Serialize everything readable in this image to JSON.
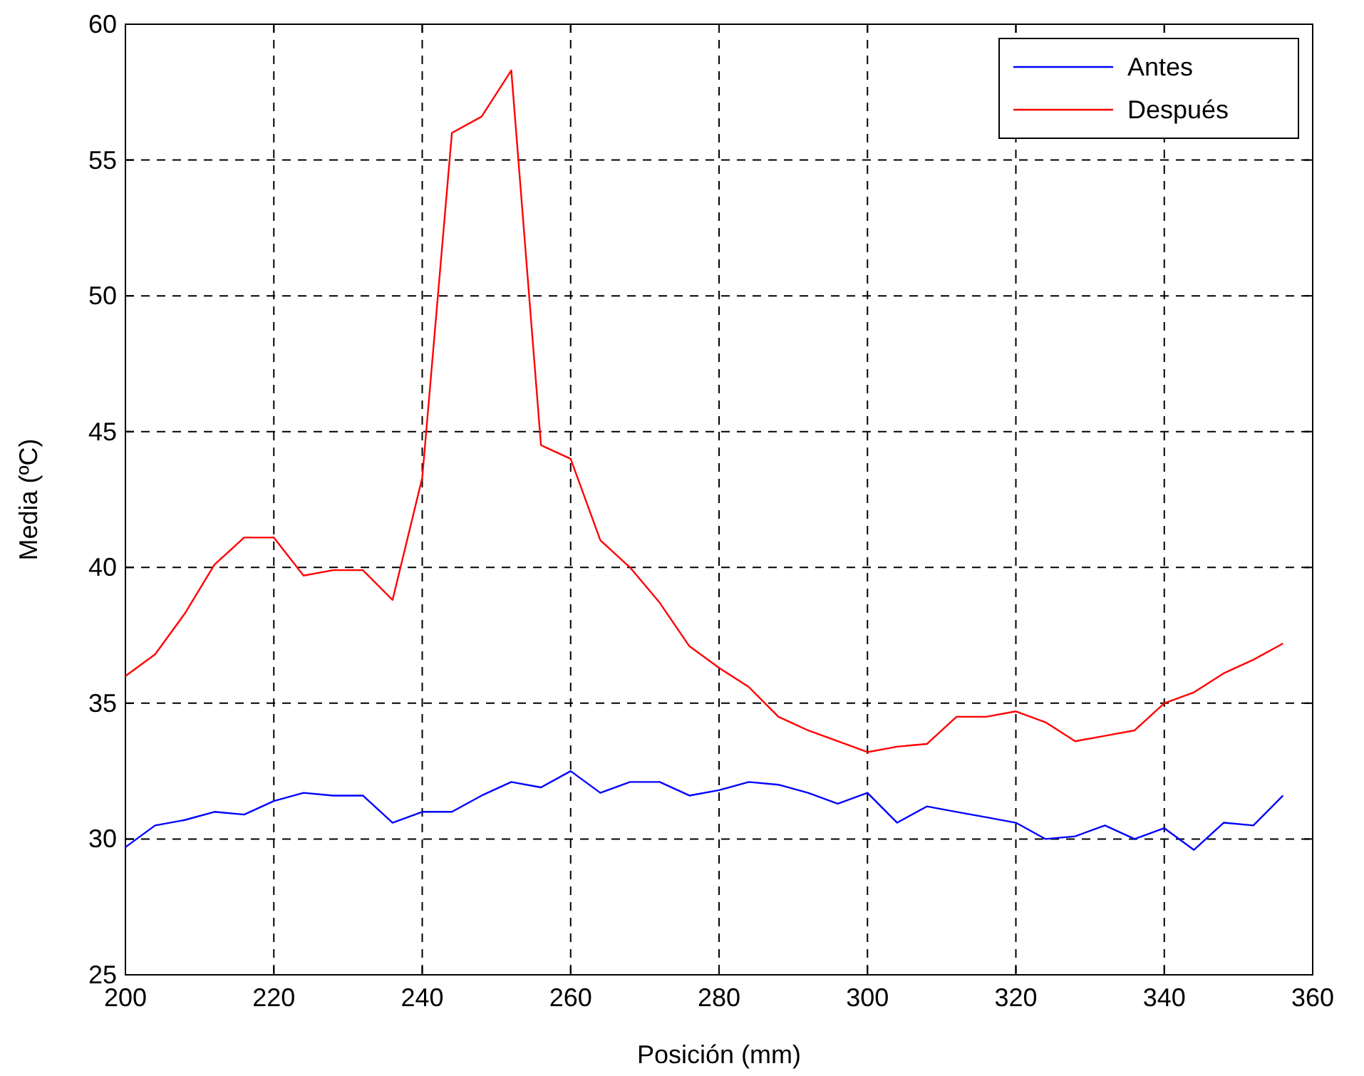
{
  "chart_data": {
    "type": "line",
    "xlabel": "Posición (mm)",
    "ylabel": "Media (ºC)",
    "x": [
      200,
      204,
      208,
      212,
      216,
      220,
      224,
      228,
      232,
      236,
      240,
      244,
      248,
      252,
      256,
      260,
      264,
      268,
      272,
      276,
      280,
      284,
      288,
      292,
      296,
      300,
      304,
      308,
      312,
      316,
      320,
      324,
      328,
      332,
      336,
      340,
      344,
      348,
      352,
      356
    ],
    "series": [
      {
        "name": "Antes",
        "color": "#0000ff",
        "values": [
          29.7,
          30.5,
          30.7,
          31.0,
          30.9,
          31.4,
          31.7,
          31.6,
          31.6,
          30.6,
          31.0,
          31.0,
          31.6,
          32.1,
          31.9,
          32.5,
          31.7,
          32.1,
          32.1,
          31.6,
          31.8,
          32.1,
          32.0,
          31.7,
          31.3,
          31.7,
          30.6,
          31.2,
          31.0,
          30.8,
          30.6,
          30.0,
          30.1,
          30.5,
          30.0,
          30.4,
          29.6,
          30.6,
          30.5,
          31.6
        ]
      },
      {
        "name": "Después",
        "color": "#ff0000",
        "values": [
          36.0,
          36.8,
          38.3,
          40.1,
          41.1,
          41.1,
          39.7,
          39.9,
          39.9,
          38.8,
          43.3,
          56.0,
          56.6,
          58.3,
          44.5,
          44.0,
          41.0,
          40.0,
          38.7,
          37.1,
          36.3,
          35.6,
          34.5,
          34.0,
          33.6,
          33.2,
          33.4,
          33.5,
          34.5,
          34.5,
          34.7,
          34.3,
          33.6,
          33.8,
          34.0,
          35.0,
          35.4,
          36.1,
          36.6,
          37.2
        ]
      }
    ],
    "xlim": [
      200,
      360
    ],
    "xticks": [
      200,
      220,
      240,
      260,
      280,
      300,
      320,
      340,
      360
    ],
    "ylim": [
      25,
      60
    ],
    "yticks": [
      25,
      30,
      35,
      40,
      45,
      50,
      55,
      60
    ],
    "grid": true,
    "legend": "top right",
    "marker": "none",
    "line_style": "solid"
  }
}
